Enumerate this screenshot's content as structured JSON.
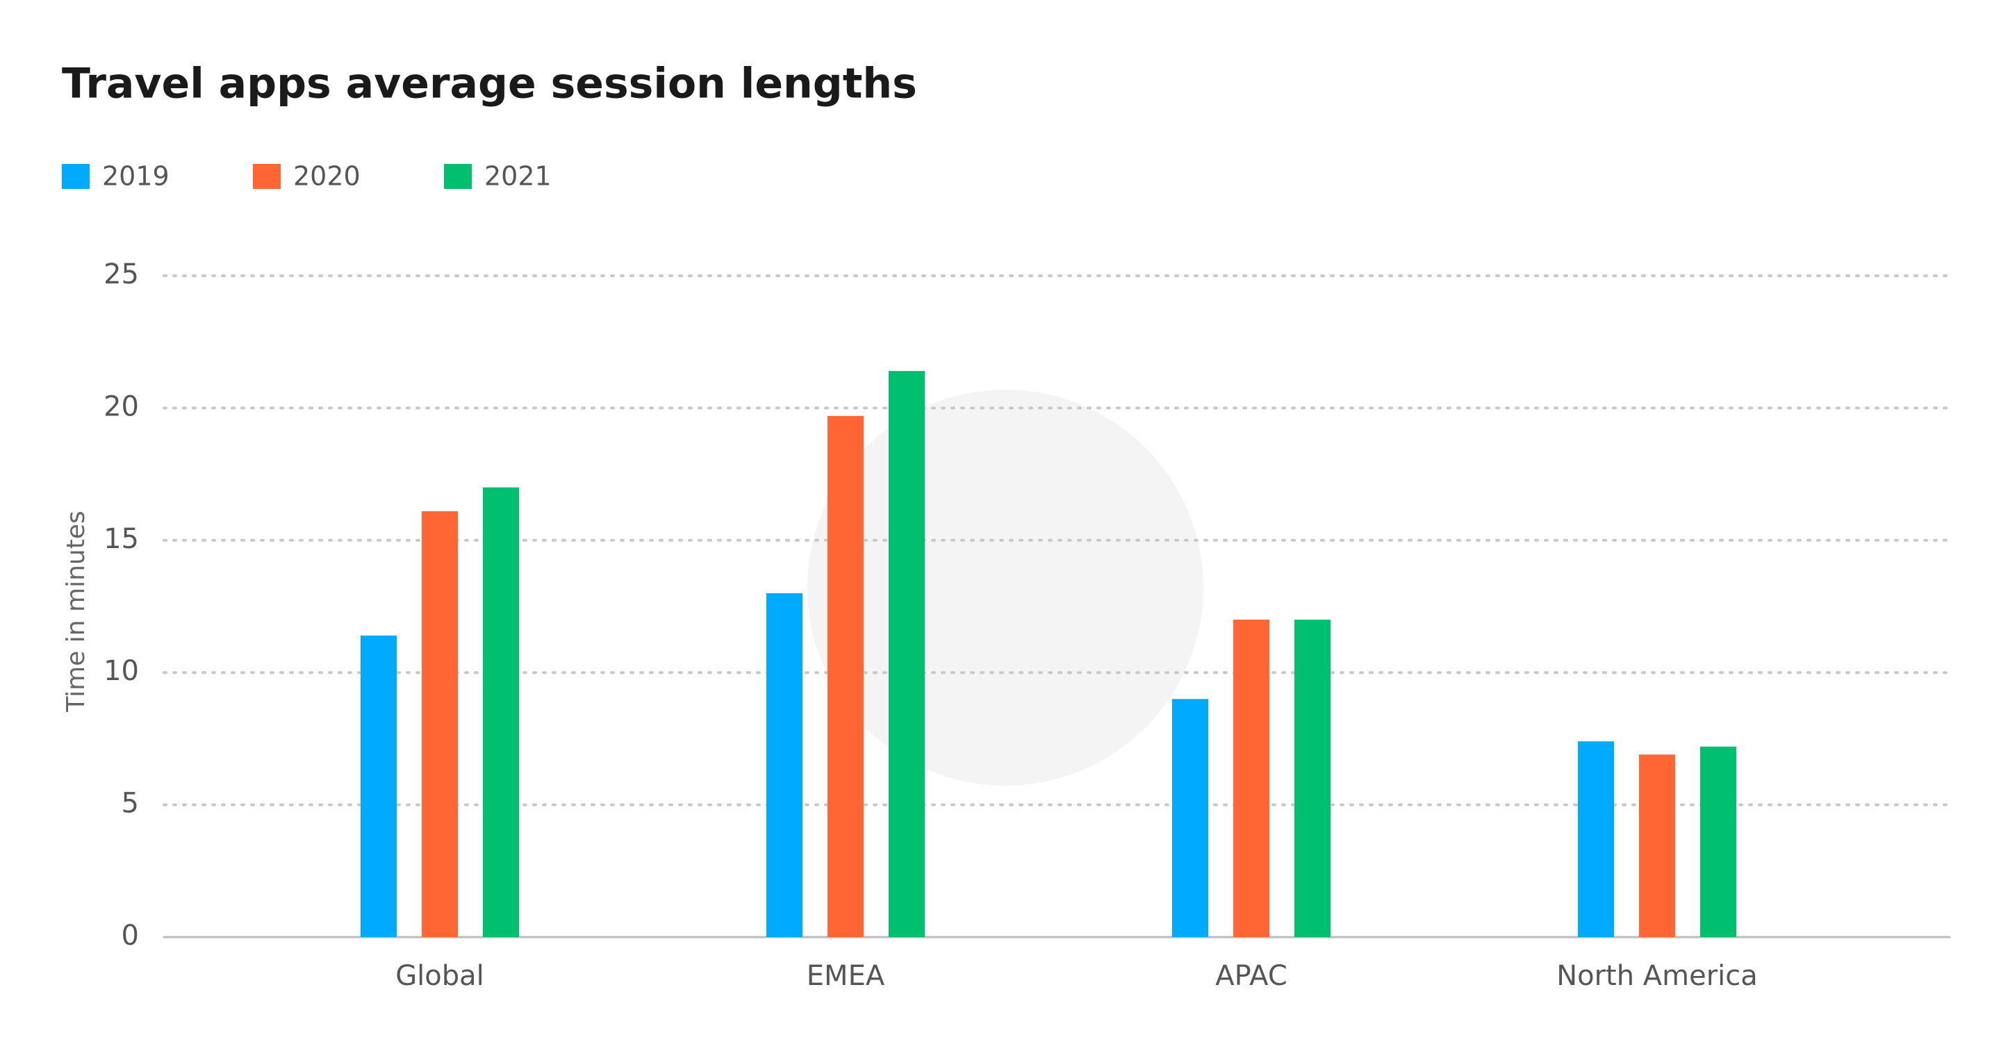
{
  "chart_data": {
    "type": "bar",
    "title": "Travel apps average session lengths",
    "y_label": "Time in minutes",
    "categories": [
      "Global",
      "EMEA",
      "APAC",
      "North America"
    ],
    "series": [
      {
        "name": "2019",
        "color": "#00aaff",
        "values": [
          11.4,
          13.0,
          9.0,
          7.4
        ]
      },
      {
        "name": "2020",
        "color": "#ff6633",
        "values": [
          16.1,
          19.7,
          12.0,
          6.9
        ]
      },
      {
        "name": "2021",
        "color": "#00bf6f",
        "values": [
          17.0,
          21.4,
          12.0,
          7.2
        ]
      }
    ],
    "ylim": [
      0,
      25
    ],
    "yticks": [
      0,
      5,
      10,
      15,
      20,
      25
    ],
    "grid": true,
    "legend": "top-left"
  }
}
